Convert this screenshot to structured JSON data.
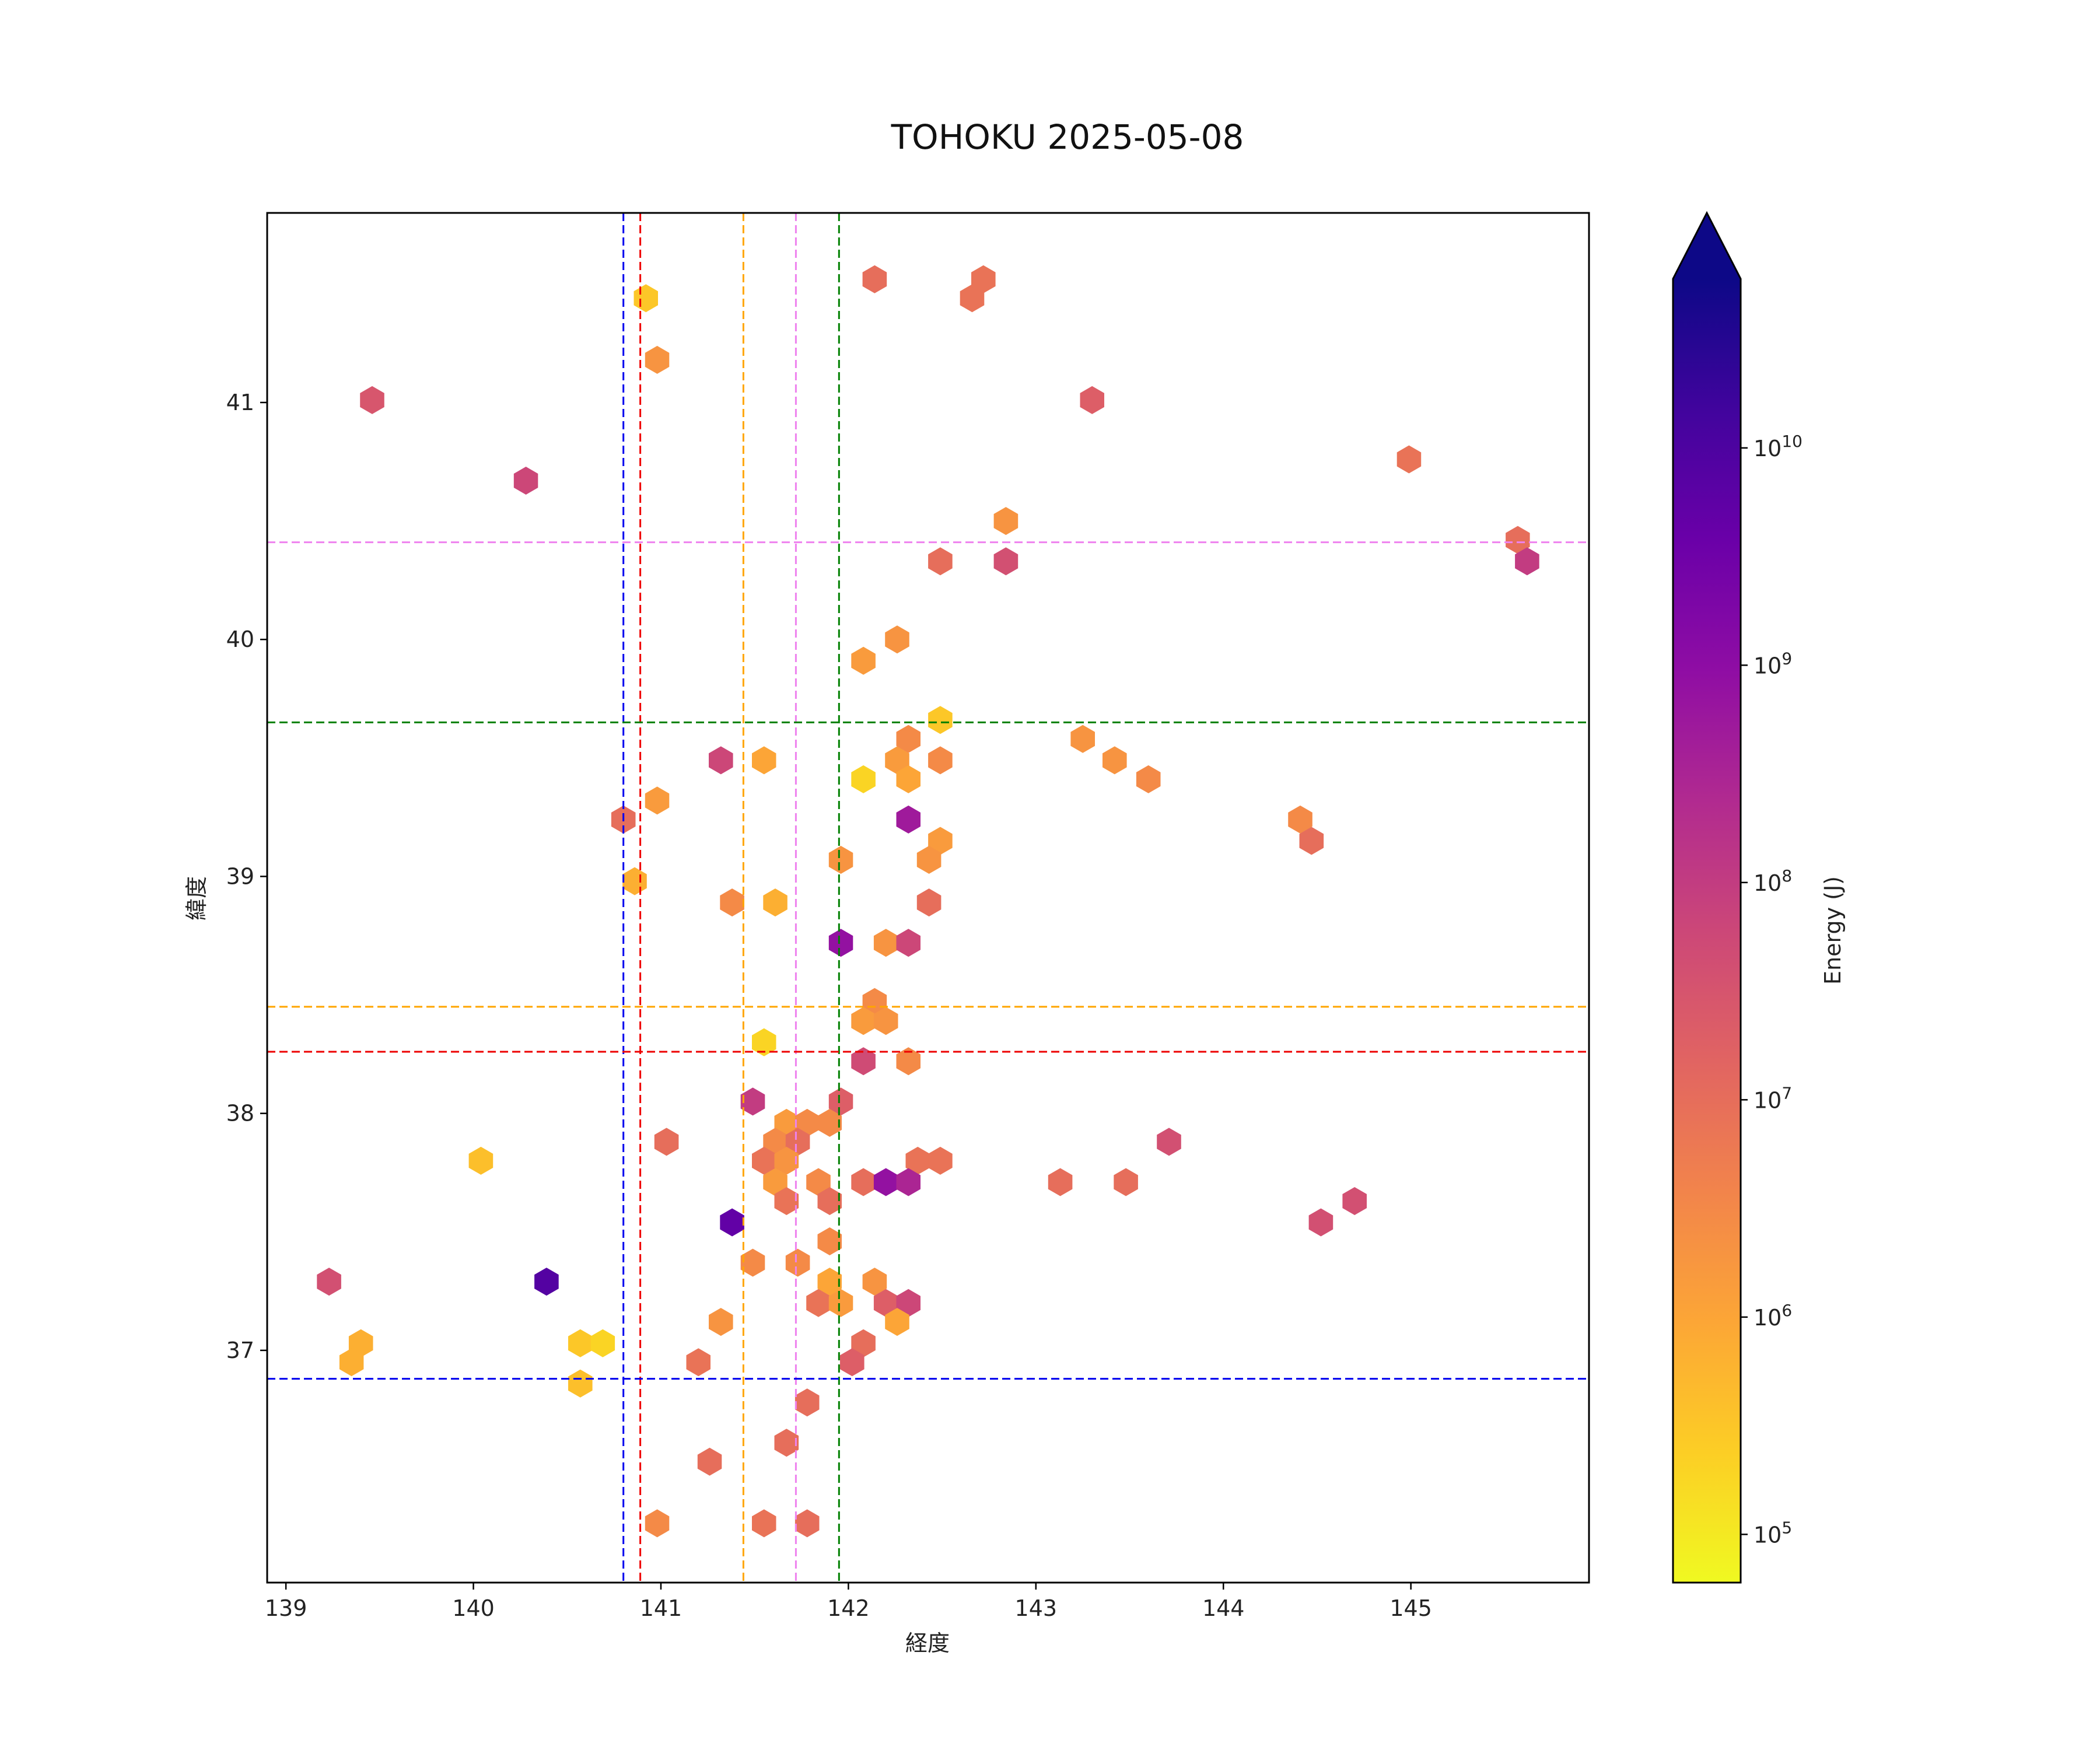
{
  "chart_data": {
    "type": "hexbin",
    "title": "TOHOKU 2025-05-08",
    "xlabel": "経度",
    "ylabel": "緯度",
    "xlim": [
      138.9,
      145.95
    ],
    "ylim": [
      36.02,
      41.8
    ],
    "xticks": [
      139,
      140,
      141,
      142,
      143,
      144,
      145
    ],
    "yticks": [
      37,
      38,
      39,
      40,
      41
    ],
    "colorbar": {
      "label": "Energy (J)",
      "scale": "log",
      "min": 60000,
      "max": 60000000000,
      "extend": "max",
      "colormap": "plasma",
      "ticks": [
        {
          "value": 100000,
          "base": "10",
          "exp": "5"
        },
        {
          "value": 1000000,
          "base": "10",
          "exp": "6"
        },
        {
          "value": 10000000,
          "base": "10",
          "exp": "7"
        },
        {
          "value": 100000000,
          "base": "10",
          "exp": "8"
        },
        {
          "value": 1000000000,
          "base": "10",
          "exp": "9"
        },
        {
          "value": 10000000000,
          "base": "10",
          "exp": "10"
        }
      ]
    },
    "reference_lines": [
      {
        "orientation": "vertical",
        "value": 140.8,
        "color": "#0000ee"
      },
      {
        "orientation": "vertical",
        "value": 140.89,
        "color": "#ee0000"
      },
      {
        "orientation": "vertical",
        "value": 141.44,
        "color": "#ffa500"
      },
      {
        "orientation": "vertical",
        "value": 141.72,
        "color": "#ee82ee"
      },
      {
        "orientation": "vertical",
        "value": 141.95,
        "color": "#008000"
      },
      {
        "orientation": "horizontal",
        "value": 40.41,
        "color": "#ee82ee"
      },
      {
        "orientation": "horizontal",
        "value": 39.65,
        "color": "#008000"
      },
      {
        "orientation": "horizontal",
        "value": 38.45,
        "color": "#ffa500"
      },
      {
        "orientation": "horizontal",
        "value": 38.26,
        "color": "#ee0000"
      },
      {
        "orientation": "horizontal",
        "value": 36.88,
        "color": "#0000ee"
      }
    ],
    "points": [
      [
        139.46,
        41.01,
        30000000
      ],
      [
        140.28,
        40.67,
        60000000
      ],
      [
        140.92,
        41.44,
        300000
      ],
      [
        140.98,
        41.18,
        2000000
      ],
      [
        142.14,
        41.52,
        10000000
      ],
      [
        142.66,
        41.44,
        8000000
      ],
      [
        142.72,
        41.52,
        8000000
      ],
      [
        143.3,
        41.01,
        20000000
      ],
      [
        144.99,
        40.76,
        8000000
      ],
      [
        145.57,
        40.42,
        10000000
      ],
      [
        145.62,
        40.33,
        100000000
      ],
      [
        142.84,
        40.5,
        2000000
      ],
      [
        142.49,
        40.33,
        10000000
      ],
      [
        142.84,
        40.33,
        40000000
      ],
      [
        142.26,
        40.0,
        2000000
      ],
      [
        142.08,
        39.91,
        1500000
      ],
      [
        142.49,
        39.66,
        300000
      ],
      [
        141.32,
        39.49,
        60000000
      ],
      [
        141.55,
        39.49,
        1000000
      ],
      [
        142.26,
        39.49,
        1500000
      ],
      [
        142.32,
        39.58,
        3000000
      ],
      [
        142.49,
        39.49,
        3000000
      ],
      [
        142.08,
        39.41,
        200000
      ],
      [
        142.32,
        39.41,
        1000000
      ],
      [
        143.25,
        39.58,
        2000000
      ],
      [
        143.42,
        39.49,
        2000000
      ],
      [
        143.6,
        39.41,
        3000000
      ],
      [
        140.8,
        39.24,
        10000000
      ],
      [
        140.98,
        39.32,
        1500000
      ],
      [
        142.32,
        39.24,
        500000000
      ],
      [
        142.49,
        39.15,
        1500000
      ],
      [
        144.41,
        39.24,
        3000000
      ],
      [
        144.47,
        39.15,
        10000000
      ],
      [
        140.86,
        38.98,
        700000
      ],
      [
        141.96,
        39.07,
        2000000
      ],
      [
        142.43,
        39.07,
        2000000
      ],
      [
        141.38,
        38.89,
        3000000
      ],
      [
        141.61,
        38.89,
        700000
      ],
      [
        142.43,
        38.89,
        10000000
      ],
      [
        141.96,
        38.72,
        800000000
      ],
      [
        142.2,
        38.72,
        2000000
      ],
      [
        142.32,
        38.72,
        60000000
      ],
      [
        142.14,
        38.47,
        3000000
      ],
      [
        142.08,
        38.39,
        1500000
      ],
      [
        142.2,
        38.39,
        2000000
      ],
      [
        141.55,
        38.3,
        200000
      ],
      [
        142.08,
        38.22,
        50000000
      ],
      [
        142.32,
        38.22,
        3000000
      ],
      [
        141.49,
        38.05,
        100000000
      ],
      [
        141.96,
        38.05,
        20000000
      ],
      [
        141.67,
        37.96,
        1500000
      ],
      [
        141.78,
        37.96,
        3000000
      ],
      [
        141.9,
        37.96,
        3000000
      ],
      [
        141.03,
        37.88,
        10000000
      ],
      [
        141.61,
        37.88,
        3000000
      ],
      [
        141.73,
        37.88,
        10000000
      ],
      [
        140.04,
        37.8,
        400000
      ],
      [
        141.55,
        37.8,
        8000000
      ],
      [
        141.67,
        37.8,
        2000000
      ],
      [
        142.37,
        37.8,
        8000000
      ],
      [
        142.49,
        37.8,
        8000000
      ],
      [
        141.61,
        37.71,
        1500000
      ],
      [
        141.84,
        37.71,
        3000000
      ],
      [
        142.08,
        37.71,
        10000000
      ],
      [
        142.2,
        37.71,
        800000000
      ],
      [
        142.32,
        37.71,
        300000000
      ],
      [
        143.13,
        37.71,
        10000000
      ],
      [
        143.48,
        37.71,
        10000000
      ],
      [
        143.71,
        37.88,
        40000000
      ],
      [
        141.67,
        37.63,
        8000000
      ],
      [
        141.9,
        37.63,
        10000000
      ],
      [
        141.38,
        37.54,
        5000000000
      ],
      [
        144.52,
        37.54,
        40000000
      ],
      [
        144.7,
        37.63,
        40000000
      ],
      [
        141.9,
        37.46,
        3000000
      ],
      [
        141.49,
        37.37,
        3000000
      ],
      [
        141.73,
        37.37,
        3000000
      ],
      [
        139.23,
        37.29,
        40000000
      ],
      [
        140.39,
        37.29,
        8000000000
      ],
      [
        141.9,
        37.29,
        1000000
      ],
      [
        142.14,
        37.29,
        2000000
      ],
      [
        141.84,
        37.2,
        8000000
      ],
      [
        141.96,
        37.2,
        1500000
      ],
      [
        142.2,
        37.2,
        20000000
      ],
      [
        142.32,
        37.2,
        60000000
      ],
      [
        141.32,
        37.12,
        2000000
      ],
      [
        142.26,
        37.12,
        1000000
      ],
      [
        139.4,
        37.03,
        700000
      ],
      [
        140.57,
        37.03,
        300000
      ],
      [
        140.69,
        37.03,
        200000
      ],
      [
        142.08,
        37.03,
        10000000
      ],
      [
        139.35,
        36.95,
        700000
      ],
      [
        141.2,
        36.95,
        8000000
      ],
      [
        142.02,
        36.95,
        20000000
      ],
      [
        140.57,
        36.86,
        400000
      ],
      [
        141.78,
        36.78,
        10000000
      ],
      [
        141.67,
        36.61,
        10000000
      ],
      [
        141.26,
        36.53,
        10000000
      ],
      [
        140.98,
        36.27,
        3000000
      ],
      [
        141.55,
        36.27,
        8000000
      ],
      [
        141.78,
        36.27,
        10000000
      ]
    ]
  }
}
